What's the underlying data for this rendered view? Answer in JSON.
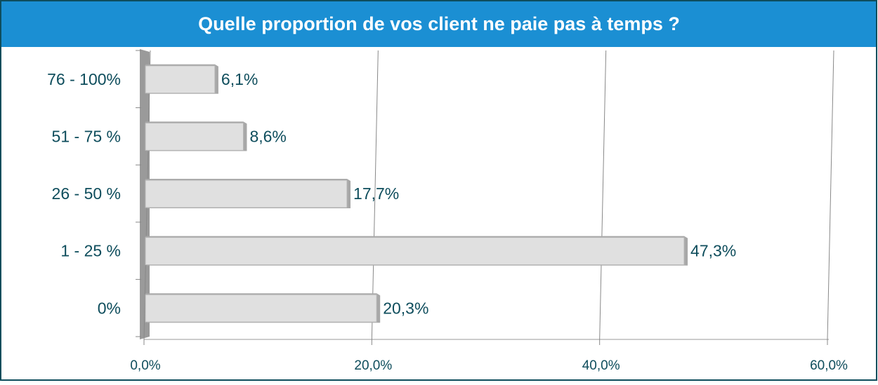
{
  "chart_data": {
    "type": "bar",
    "orientation": "horizontal",
    "title": "Quelle proportion de vos client ne paie pas à temps ?",
    "categories": [
      "76 - 100%",
      "51 - 75 %",
      "26 - 50 %",
      "1 - 25 %",
      "0%"
    ],
    "values": [
      6.1,
      8.6,
      17.7,
      47.3,
      20.3
    ],
    "value_labels": [
      "6,1%",
      "8,6%",
      "17,7%",
      "47,3%",
      "20,3%"
    ],
    "color": "#e0e0e0",
    "xlim": [
      0,
      60
    ],
    "xticks": [
      {
        "value": 0,
        "label": "0,0%"
      },
      {
        "value": 20,
        "label": "20,0%"
      },
      {
        "value": 40,
        "label": "40,0%"
      },
      {
        "value": 60,
        "label": "60,0%"
      }
    ],
    "grid": true
  }
}
